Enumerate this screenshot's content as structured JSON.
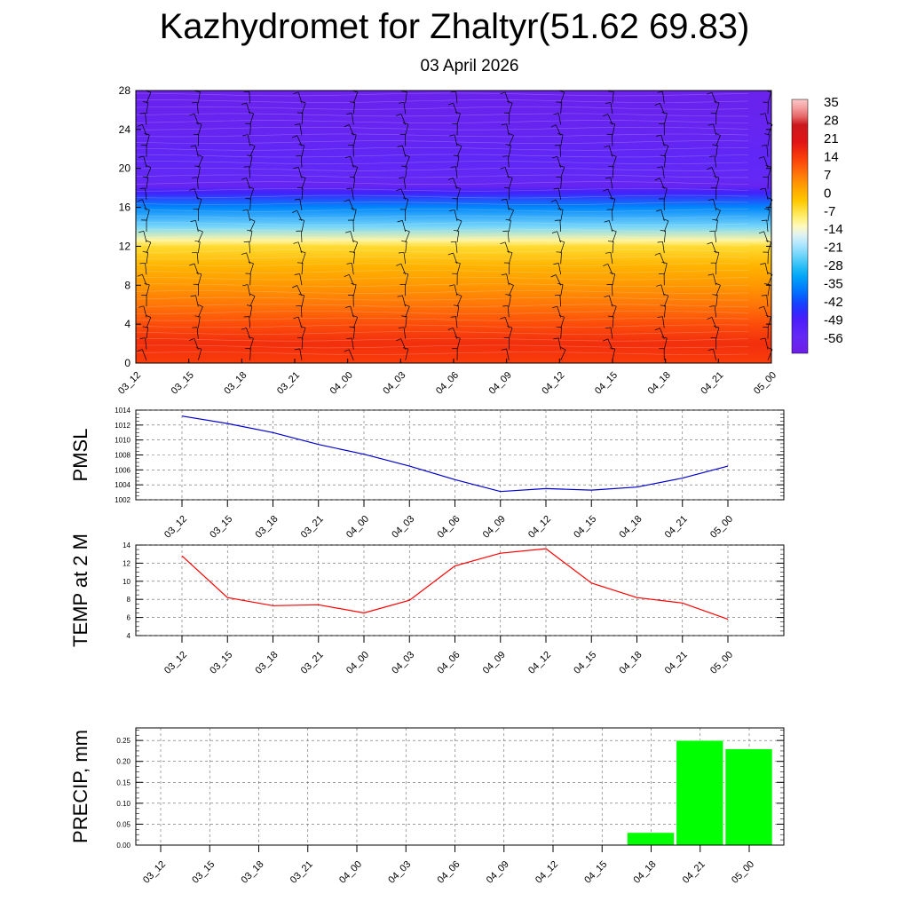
{
  "header": {
    "title": "Kazhydromet for Zhaltyr(51.62 69.83)",
    "date": "03 April 2026"
  },
  "time_labels": [
    "03_12",
    "03_15",
    "03_18",
    "03_21",
    "04_00",
    "04_03",
    "04_06",
    "04_09",
    "04_12",
    "04_15",
    "04_18",
    "04_21",
    "05_00"
  ],
  "chart_data": [
    {
      "type": "heatmap",
      "description": "Vertical temperature cross-section with wind barbs",
      "x": [
        "03_12",
        "03_15",
        "03_18",
        "03_21",
        "04_00",
        "04_03",
        "04_06",
        "04_09",
        "04_12",
        "04_15",
        "04_18",
        "04_21",
        "05_00"
      ],
      "y_ticks": [
        0,
        4,
        8,
        12,
        16,
        20,
        24,
        28
      ],
      "ylim": [
        0,
        28
      ],
      "colorbar_labels": [
        "35",
        "28",
        "21",
        "14",
        "7",
        "0",
        "-7",
        "-14",
        "-21",
        "-28",
        "-35",
        "-42",
        "-49",
        "-56"
      ],
      "colorbar_range": [
        -63,
        42
      ],
      "temperature_profile": [
        {
          "level": 0,
          "value": 18
        },
        {
          "level": 2,
          "value": 20
        },
        {
          "level": 4,
          "value": 16
        },
        {
          "level": 6,
          "value": 11
        },
        {
          "level": 8,
          "value": 7
        },
        {
          "level": 10,
          "value": 3
        },
        {
          "level": 12,
          "value": -3
        },
        {
          "level": 12.6,
          "value": -9
        },
        {
          "level": 14,
          "value": -22
        },
        {
          "level": 16,
          "value": -35
        },
        {
          "level": 17.5,
          "value": -48
        },
        {
          "level": 18.2,
          "value": -58
        },
        {
          "level": 19,
          "value": -56
        },
        {
          "level": 21,
          "value": -55
        },
        {
          "level": 24,
          "value": -58
        },
        {
          "level": 28,
          "value": -60
        }
      ]
    },
    {
      "type": "line",
      "ylabel": "PMSL",
      "x": [
        "03_12",
        "03_15",
        "03_18",
        "03_21",
        "04_00",
        "04_03",
        "04_06",
        "04_09",
        "04_12",
        "04_15",
        "04_18",
        "04_21",
        "05_00"
      ],
      "values": [
        1013.2,
        1012.2,
        1011.0,
        1009.4,
        1008.1,
        1006.5,
        1004.7,
        1003.1,
        1003.5,
        1003.3,
        1003.7,
        1004.9,
        1006.5
      ],
      "ylim": [
        1002,
        1014
      ],
      "y_ticks": [
        1002,
        1004,
        1006,
        1008,
        1010,
        1012,
        1014
      ],
      "color": "#0000cc"
    },
    {
      "type": "line",
      "ylabel": "TEMP at 2 M",
      "x": [
        "03_12",
        "03_15",
        "03_18",
        "03_21",
        "04_00",
        "04_03",
        "04_06",
        "04_09",
        "04_12",
        "04_15",
        "04_18",
        "04_21",
        "05_00"
      ],
      "values": [
        12.8,
        8.2,
        7.3,
        7.4,
        6.5,
        7.9,
        11.7,
        13.1,
        13.6,
        9.8,
        8.2,
        7.6,
        5.8
      ],
      "ylim": [
        4,
        14
      ],
      "y_ticks": [
        4,
        6,
        8,
        10,
        12,
        14
      ],
      "color": "#ff0000"
    },
    {
      "type": "bar",
      "ylabel": "PRECIP, mm",
      "categories": [
        "03_12",
        "03_15",
        "03_18",
        "03_21",
        "04_00",
        "04_03",
        "04_06",
        "04_09",
        "04_12",
        "04_15",
        "04_18",
        "04_21",
        "05_00"
      ],
      "values": [
        0,
        0,
        0,
        0,
        0,
        0,
        0,
        0,
        0,
        0,
        0.03,
        0.25,
        0.23
      ],
      "ylim": [
        0,
        0.28
      ],
      "y_ticks": [
        "0.00",
        "0.05",
        "0.10",
        "0.15",
        "0.20",
        "0.25"
      ],
      "color": "#00ff00"
    }
  ]
}
